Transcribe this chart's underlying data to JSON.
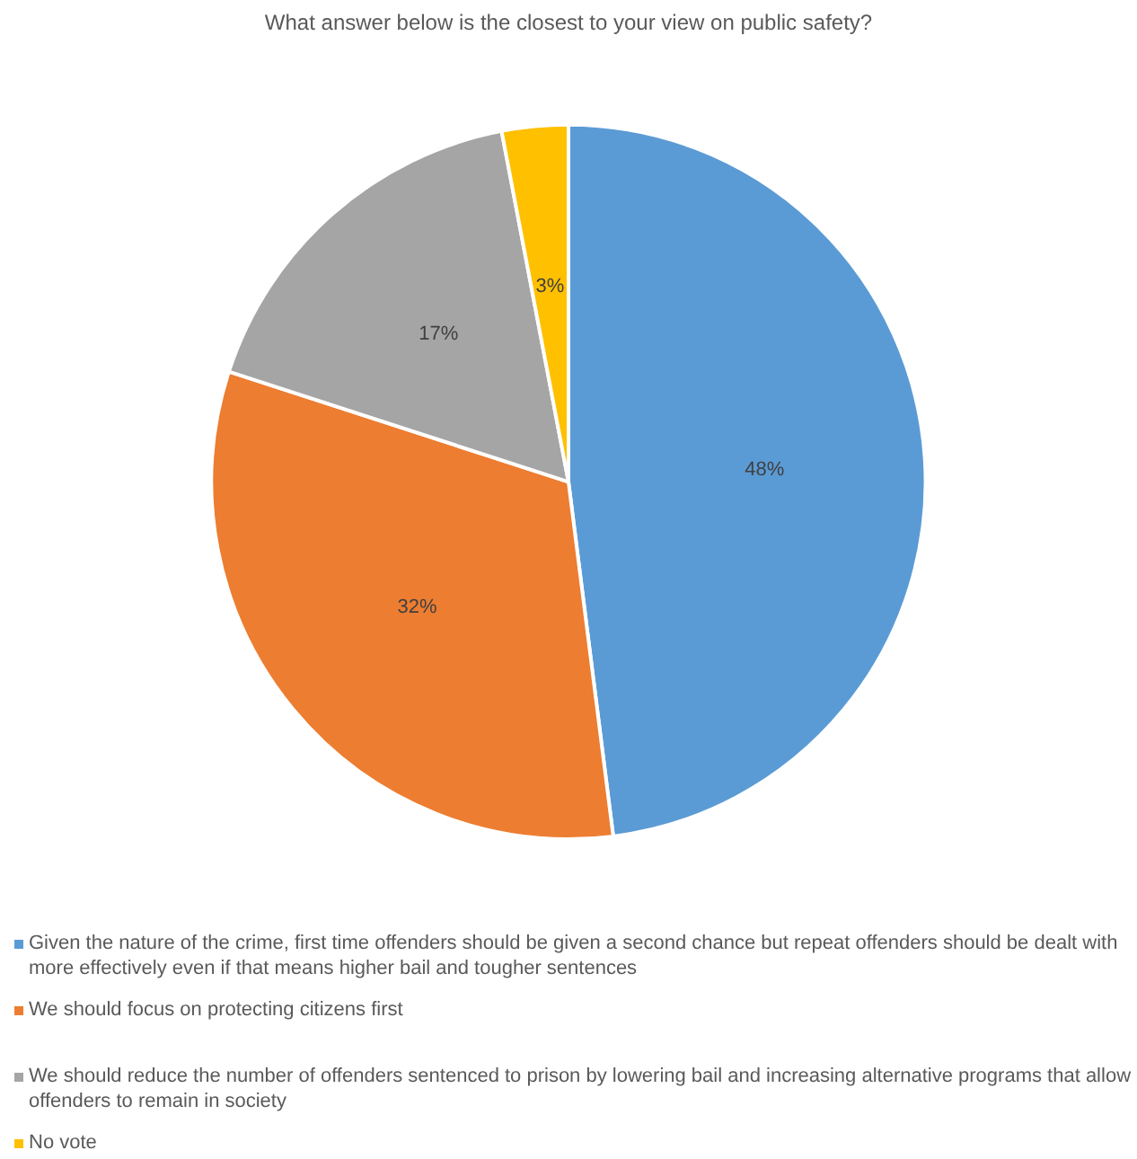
{
  "chart_data": {
    "type": "pie",
    "title": "What answer below is the closest to your view on public safety?",
    "categories": [
      "Given the nature of the crime, first time offenders should be given a second chance but repeat offenders should be dealt with more effectively even if that means higher bail and tougher sentences",
      "We should focus on protecting citizens first",
      "We should reduce the number of offenders sentenced to prison by lowering bail and increasing alternative programs that allow offenders to remain in society",
      "No vote"
    ],
    "values": [
      48,
      32,
      17,
      3
    ],
    "colors": [
      "#5b9bd5",
      "#ed7d31",
      "#a5a5a5",
      "#ffc000"
    ],
    "value_labels": [
      "48%",
      "32%",
      "17%",
      "3%"
    ],
    "legend": "bottom"
  }
}
